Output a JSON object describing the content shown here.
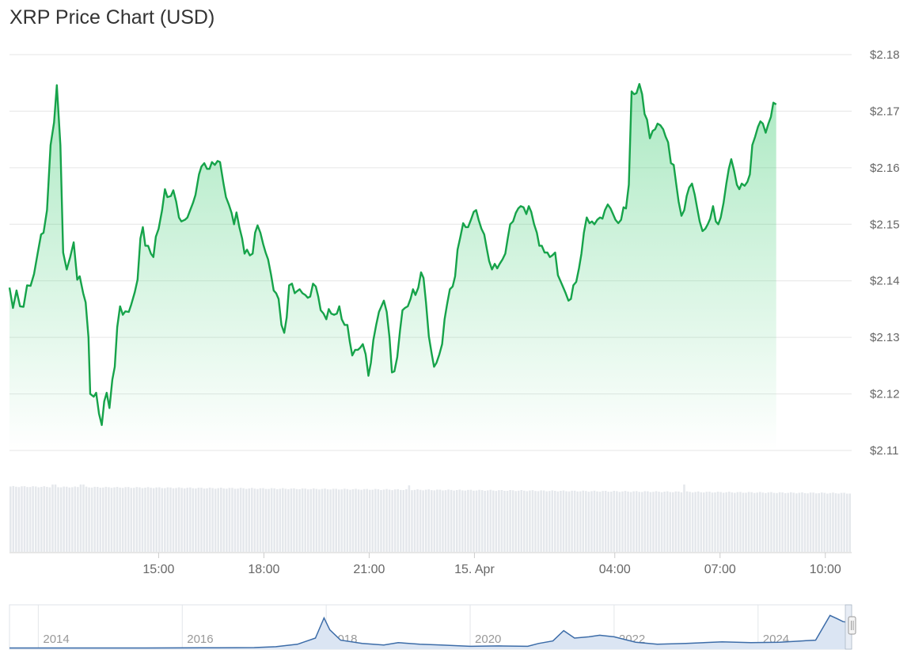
{
  "chart_data": {
    "type": "line",
    "title": "XRP Price Chart (USD)",
    "ylim": [
      2.11,
      2.18
    ],
    "y_ticks": [
      {
        "value": 2.18,
        "label": "$2.18"
      },
      {
        "value": 2.17,
        "label": "$2.17"
      },
      {
        "value": 2.16,
        "label": "$2.16"
      },
      {
        "value": 2.15,
        "label": "$2.15"
      },
      {
        "value": 2.14,
        "label": "$2.14"
      },
      {
        "value": 2.13,
        "label": "$2.13"
      },
      {
        "value": 2.12,
        "label": "$2.12"
      },
      {
        "value": 2.11,
        "label": "$2.11"
      }
    ],
    "x_ticks": [
      {
        "hour": 15,
        "label": "15:00"
      },
      {
        "hour": 18,
        "label": "18:00"
      },
      {
        "hour": 21,
        "label": "21:00"
      },
      {
        "hour": 24,
        "label": "15. Apr"
      },
      {
        "hour": 28,
        "label": "04:00"
      },
      {
        "hour": 31,
        "label": "07:00"
      },
      {
        "hour": 34,
        "label": "10:00"
      }
    ],
    "xlim_hours": [
      10.75,
      34.75
    ],
    "grid": true,
    "legend": "none",
    "colors": {
      "line": "#16a34a",
      "volume": "#e5e8ec",
      "navigator_line": "#3c6ca8"
    },
    "series": [
      {
        "points": [
          [
            10.75,
            2.1388
          ],
          [
            10.85,
            2.1352
          ],
          [
            10.95,
            2.1383
          ],
          [
            11.05,
            2.1355
          ],
          [
            11.15,
            2.1354
          ],
          [
            11.25,
            2.1392
          ],
          [
            11.35,
            2.1391
          ],
          [
            11.45,
            2.1412
          ],
          [
            11.55,
            2.1448
          ],
          [
            11.65,
            2.1482
          ],
          [
            11.72,
            2.1485
          ],
          [
            11.82,
            2.1525
          ],
          [
            11.92,
            2.164
          ],
          [
            12.02,
            2.168
          ],
          [
            12.1,
            2.1746
          ],
          [
            12.2,
            2.164
          ],
          [
            12.28,
            2.145
          ],
          [
            12.38,
            2.142
          ],
          [
            12.48,
            2.1442
          ],
          [
            12.58,
            2.1468
          ],
          [
            12.68,
            2.1402
          ],
          [
            12.75,
            2.1408
          ],
          [
            12.85,
            2.1378
          ],
          [
            12.92,
            2.1362
          ],
          [
            13.0,
            2.13
          ],
          [
            13.05,
            2.12
          ],
          [
            13.15,
            2.1195
          ],
          [
            13.22,
            2.1202
          ],
          [
            13.3,
            2.1165
          ],
          [
            13.38,
            2.1145
          ],
          [
            13.45,
            2.1187
          ],
          [
            13.52,
            2.1202
          ],
          [
            13.6,
            2.1175
          ],
          [
            13.68,
            2.1225
          ],
          [
            13.75,
            2.1248
          ],
          [
            13.82,
            2.1318
          ],
          [
            13.9,
            2.1355
          ],
          [
            13.98,
            2.134
          ],
          [
            14.05,
            2.1346
          ],
          [
            14.15,
            2.1345
          ],
          [
            14.22,
            2.1358
          ],
          [
            14.32,
            2.138
          ],
          [
            14.4,
            2.1402
          ],
          [
            14.48,
            2.1475
          ],
          [
            14.55,
            2.1495
          ],
          [
            14.62,
            2.1462
          ],
          [
            14.7,
            2.1462
          ],
          [
            14.78,
            2.1448
          ],
          [
            14.85,
            2.1442
          ],
          [
            14.92,
            2.1478
          ],
          [
            15.0,
            2.1492
          ],
          [
            15.1,
            2.1525
          ],
          [
            15.18,
            2.1562
          ],
          [
            15.25,
            2.1548
          ],
          [
            15.35,
            2.155
          ],
          [
            15.42,
            2.156
          ],
          [
            15.5,
            2.154
          ],
          [
            15.58,
            2.1512
          ],
          [
            15.65,
            2.1505
          ],
          [
            15.75,
            2.1508
          ],
          [
            15.82,
            2.1512
          ],
          [
            15.9,
            2.1525
          ],
          [
            15.98,
            2.1538
          ],
          [
            16.05,
            2.1552
          ],
          [
            16.15,
            2.1588
          ],
          [
            16.22,
            2.1602
          ],
          [
            16.3,
            2.1608
          ],
          [
            16.38,
            2.1598
          ],
          [
            16.45,
            2.1598
          ],
          [
            16.52,
            2.161
          ],
          [
            16.6,
            2.1605
          ],
          [
            16.68,
            2.1612
          ],
          [
            16.75,
            2.161
          ],
          [
            16.85,
            2.1572
          ],
          [
            16.92,
            2.1548
          ],
          [
            17.0,
            2.1535
          ],
          [
            17.08,
            2.152
          ],
          [
            17.15,
            2.15
          ],
          [
            17.22,
            2.1521
          ],
          [
            17.3,
            2.1495
          ],
          [
            17.38,
            2.1475
          ],
          [
            17.45,
            2.1448
          ],
          [
            17.52,
            2.1455
          ],
          [
            17.6,
            2.1445
          ],
          [
            17.68,
            2.1448
          ],
          [
            17.75,
            2.1485
          ],
          [
            17.82,
            2.1498
          ],
          [
            17.9,
            2.1485
          ],
          [
            17.98,
            2.1465
          ],
          [
            18.05,
            2.145
          ],
          [
            18.12,
            2.1438
          ],
          [
            18.2,
            2.1412
          ],
          [
            18.28,
            2.1383
          ],
          [
            18.35,
            2.1378
          ],
          [
            18.42,
            2.1368
          ],
          [
            18.5,
            2.1322
          ],
          [
            18.58,
            2.1308
          ],
          [
            18.65,
            2.1335
          ],
          [
            18.72,
            2.1392
          ],
          [
            18.8,
            2.1395
          ],
          [
            18.88,
            2.1378
          ],
          [
            18.95,
            2.1382
          ],
          [
            19.02,
            2.1385
          ],
          [
            19.1,
            2.1378
          ],
          [
            19.18,
            2.1375
          ],
          [
            19.25,
            2.137
          ],
          [
            19.32,
            2.1372
          ],
          [
            19.4,
            2.1395
          ],
          [
            19.48,
            2.139
          ],
          [
            19.55,
            2.1372
          ],
          [
            19.62,
            2.1348
          ],
          [
            19.7,
            2.1342
          ],
          [
            19.78,
            2.1332
          ],
          [
            19.85,
            2.135
          ],
          [
            19.92,
            2.1342
          ],
          [
            20.0,
            2.134
          ],
          [
            20.08,
            2.1342
          ],
          [
            20.15,
            2.1355
          ],
          [
            20.22,
            2.1332
          ],
          [
            20.3,
            2.1322
          ],
          [
            20.38,
            2.1322
          ],
          [
            20.45,
            2.1292
          ],
          [
            20.52,
            2.1268
          ],
          [
            20.6,
            2.1278
          ],
          [
            20.68,
            2.1278
          ],
          [
            20.75,
            2.1282
          ],
          [
            20.82,
            2.1288
          ],
          [
            20.9,
            2.127
          ],
          [
            20.98,
            2.1232
          ],
          [
            21.05,
            2.1255
          ],
          [
            21.12,
            2.1295
          ],
          [
            21.2,
            2.1322
          ],
          [
            21.28,
            2.1345
          ],
          [
            21.35,
            2.1355
          ],
          [
            21.42,
            2.1365
          ],
          [
            21.5,
            2.1345
          ],
          [
            21.58,
            2.13
          ],
          [
            21.65,
            2.1238
          ],
          [
            21.72,
            2.124
          ],
          [
            21.8,
            2.1265
          ],
          [
            21.88,
            2.1312
          ],
          [
            21.95,
            2.1348
          ],
          [
            22.02,
            2.1352
          ],
          [
            22.1,
            2.1355
          ],
          [
            22.18,
            2.1368
          ],
          [
            22.25,
            2.1385
          ],
          [
            22.32,
            2.1375
          ],
          [
            22.4,
            2.1388
          ],
          [
            22.48,
            2.1415
          ],
          [
            22.55,
            2.1405
          ],
          [
            22.62,
            2.1362
          ],
          [
            22.7,
            2.1302
          ],
          [
            22.78,
            2.1272
          ],
          [
            22.85,
            2.1248
          ],
          [
            22.92,
            2.1255
          ],
          [
            23.0,
            2.127
          ],
          [
            23.08,
            2.1288
          ],
          [
            23.15,
            2.1332
          ],
          [
            23.22,
            2.1358
          ],
          [
            23.3,
            2.1385
          ],
          [
            23.38,
            2.139
          ],
          [
            23.45,
            2.1408
          ],
          [
            23.52,
            2.1455
          ],
          [
            23.6,
            2.1478
          ],
          [
            23.68,
            2.1502
          ],
          [
            23.75,
            2.1495
          ],
          [
            23.82,
            2.1495
          ],
          [
            23.9,
            2.1508
          ],
          [
            23.98,
            2.1522
          ],
          [
            24.05,
            2.1525
          ],
          [
            24.12,
            2.1508
          ],
          [
            24.2,
            2.1492
          ],
          [
            24.28,
            2.1482
          ],
          [
            24.35,
            2.1458
          ],
          [
            24.42,
            2.1435
          ],
          [
            24.5,
            2.142
          ],
          [
            24.58,
            2.143
          ],
          [
            24.65,
            2.1422
          ],
          [
            24.72,
            2.143
          ],
          [
            24.8,
            2.1438
          ],
          [
            24.88,
            2.1448
          ],
          [
            24.95,
            2.1475
          ],
          [
            25.02,
            2.15
          ],
          [
            25.1,
            2.1505
          ],
          [
            25.18,
            2.152
          ],
          [
            25.25,
            2.1528
          ],
          [
            25.32,
            2.1532
          ],
          [
            25.4,
            2.153
          ],
          [
            25.48,
            2.1518
          ],
          [
            25.55,
            2.1532
          ],
          [
            25.62,
            2.1522
          ],
          [
            25.7,
            2.15
          ],
          [
            25.78,
            2.1485
          ],
          [
            25.85,
            2.1462
          ],
          [
            25.92,
            2.1462
          ],
          [
            26.0,
            2.145
          ],
          [
            26.08,
            2.145
          ],
          [
            26.15,
            2.1442
          ],
          [
            26.22,
            2.1445
          ],
          [
            26.3,
            2.145
          ],
          [
            26.38,
            2.141
          ],
          [
            26.45,
            2.14
          ],
          [
            26.52,
            2.139
          ],
          [
            26.6,
            2.1378
          ],
          [
            26.68,
            2.1365
          ],
          [
            26.75,
            2.1368
          ],
          [
            26.82,
            2.1392
          ],
          [
            26.9,
            2.1398
          ],
          [
            26.98,
            2.1422
          ],
          [
            27.05,
            2.1448
          ],
          [
            27.12,
            2.1485
          ],
          [
            27.2,
            2.1512
          ],
          [
            27.28,
            2.1502
          ],
          [
            27.35,
            2.1505
          ],
          [
            27.42,
            2.15
          ],
          [
            27.5,
            2.1508
          ],
          [
            27.58,
            2.1512
          ],
          [
            27.65,
            2.151
          ],
          [
            27.72,
            2.1525
          ],
          [
            27.8,
            2.1535
          ],
          [
            27.88,
            2.1528
          ],
          [
            27.95,
            2.1518
          ],
          [
            28.02,
            2.1508
          ],
          [
            28.1,
            2.1502
          ],
          [
            28.18,
            2.1508
          ],
          [
            28.25,
            2.153
          ],
          [
            28.32,
            2.1528
          ],
          [
            28.4,
            2.157
          ],
          [
            28.48,
            2.1735
          ],
          [
            28.55,
            2.173
          ],
          [
            28.62,
            2.1732
          ],
          [
            28.7,
            2.1748
          ],
          [
            28.78,
            2.173
          ],
          [
            28.85,
            2.1695
          ],
          [
            28.92,
            2.1685
          ],
          [
            29.0,
            2.1652
          ],
          [
            29.08,
            2.1665
          ],
          [
            29.15,
            2.1668
          ],
          [
            29.22,
            2.1678
          ],
          [
            29.3,
            2.1675
          ],
          [
            29.38,
            2.1668
          ],
          [
            29.45,
            2.1655
          ],
          [
            29.52,
            2.1645
          ],
          [
            29.6,
            2.1608
          ],
          [
            29.68,
            2.1605
          ],
          [
            29.75,
            2.1572
          ],
          [
            29.82,
            2.154
          ],
          [
            29.9,
            2.1515
          ],
          [
            29.98,
            2.1525
          ],
          [
            30.05,
            2.155
          ],
          [
            30.12,
            2.1565
          ],
          [
            30.2,
            2.1572
          ],
          [
            30.28,
            2.1552
          ],
          [
            30.35,
            2.1528
          ],
          [
            30.42,
            2.1505
          ],
          [
            30.5,
            2.1488
          ],
          [
            30.58,
            2.1492
          ],
          [
            30.65,
            2.15
          ],
          [
            30.72,
            2.151
          ],
          [
            30.8,
            2.1532
          ],
          [
            30.88,
            2.1505
          ],
          [
            30.95,
            2.15
          ],
          [
            31.02,
            2.1512
          ],
          [
            31.1,
            2.1538
          ],
          [
            31.18,
            2.1572
          ],
          [
            31.25,
            2.1598
          ],
          [
            31.32,
            2.1615
          ],
          [
            31.4,
            2.1595
          ],
          [
            31.48,
            2.157
          ],
          [
            31.55,
            2.1562
          ],
          [
            31.62,
            2.1572
          ],
          [
            31.7,
            2.1568
          ],
          [
            31.78,
            2.1575
          ],
          [
            31.85,
            2.1588
          ],
          [
            31.92,
            2.164
          ],
          [
            32.0,
            2.1655
          ],
          [
            32.08,
            2.1672
          ],
          [
            32.15,
            2.1682
          ],
          [
            32.22,
            2.1678
          ],
          [
            32.3,
            2.1662
          ],
          [
            32.38,
            2.1678
          ],
          [
            32.45,
            2.169
          ],
          [
            32.52,
            2.1715
          ],
          [
            32.6,
            2.1712
          ]
        ]
      }
    ],
    "volume_note": "volume bars are unlabeled",
    "navigator": {
      "year_ticks": [
        {
          "year": 2014,
          "label": "2014"
        },
        {
          "year": 2016,
          "label": "2016"
        },
        {
          "year": 2018,
          "label": "2018"
        },
        {
          "year": 2020,
          "label": "2020"
        },
        {
          "year": 2022,
          "label": "2022"
        },
        {
          "year": 2024,
          "label": "2024"
        }
      ],
      "xlim_years": [
        2013.6,
        2025.3
      ]
    }
  }
}
